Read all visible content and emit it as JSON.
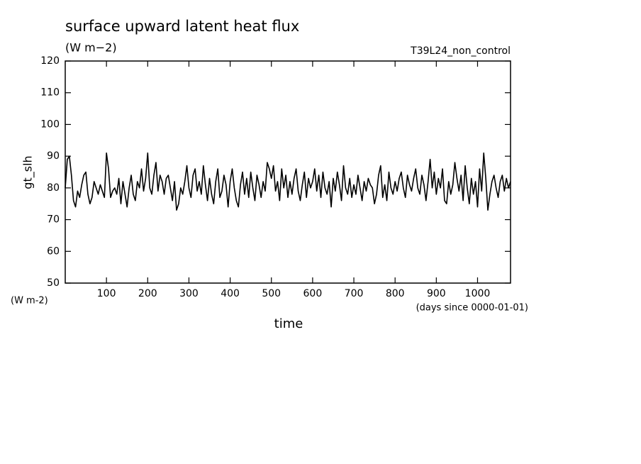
{
  "chart_data": {
    "type": "line",
    "title": "surface upward latent heat flux",
    "subtitle": "(W m−2)",
    "annotation": "T39L24_non_control",
    "ylabel": "gt_slh",
    "yunits": "(W m-2)",
    "xunits": "(days since 0000-01-01)",
    "xlabel": "time",
    "color": "#000000",
    "xlim": [
      0,
      1080
    ],
    "ylim": [
      50,
      120
    ],
    "xticks": [
      100,
      200,
      300,
      400,
      500,
      600,
      700,
      800,
      900,
      1000
    ],
    "yticks": [
      50,
      60,
      70,
      80,
      90,
      100,
      110,
      120
    ],
    "x": [
      0,
      5,
      10,
      15,
      20,
      25,
      30,
      35,
      40,
      45,
      50,
      55,
      60,
      65,
      70,
      75,
      80,
      85,
      90,
      95,
      100,
      105,
      110,
      115,
      120,
      125,
      130,
      135,
      140,
      145,
      150,
      155,
      160,
      165,
      170,
      175,
      180,
      185,
      190,
      195,
      200,
      205,
      210,
      215,
      220,
      225,
      230,
      235,
      240,
      245,
      250,
      255,
      260,
      265,
      270,
      275,
      280,
      285,
      290,
      295,
      300,
      305,
      310,
      315,
      320,
      325,
      330,
      335,
      340,
      345,
      350,
      355,
      360,
      365,
      370,
      375,
      380,
      385,
      390,
      395,
      400,
      405,
      410,
      415,
      420,
      425,
      430,
      435,
      440,
      445,
      450,
      455,
      460,
      465,
      470,
      475,
      480,
      485,
      490,
      495,
      500,
      505,
      510,
      515,
      520,
      525,
      530,
      535,
      540,
      545,
      550,
      555,
      560,
      565,
      570,
      575,
      580,
      585,
      590,
      595,
      600,
      605,
      610,
      615,
      620,
      625,
      630,
      635,
      640,
      645,
      650,
      655,
      660,
      665,
      670,
      675,
      680,
      685,
      690,
      695,
      700,
      705,
      710,
      715,
      720,
      725,
      730,
      735,
      740,
      745,
      750,
      755,
      760,
      765,
      770,
      775,
      780,
      785,
      790,
      795,
      800,
      805,
      810,
      815,
      820,
      825,
      830,
      835,
      840,
      845,
      850,
      855,
      860,
      865,
      870,
      875,
      880,
      885,
      890,
      895,
      900,
      905,
      910,
      915,
      920,
      925,
      930,
      935,
      940,
      945,
      950,
      955,
      960,
      965,
      970,
      975,
      980,
      985,
      990,
      995,
      1000,
      1005,
      1010,
      1015,
      1020,
      1025,
      1030,
      1035,
      1040,
      1045,
      1050,
      1055,
      1060,
      1065,
      1070,
      1075,
      1080
    ],
    "values": [
      80,
      89,
      90,
      84,
      76,
      74,
      79,
      77,
      81,
      84,
      85,
      78,
      75,
      77,
      82,
      80,
      78,
      81,
      79,
      77,
      91,
      86,
      77,
      79,
      80,
      78,
      83,
      75,
      82,
      78,
      74,
      80,
      84,
      78,
      76,
      82,
      80,
      86,
      79,
      83,
      91,
      80,
      78,
      84,
      88,
      79,
      84,
      82,
      78,
      83,
      84,
      80,
      76,
      82,
      73,
      75,
      80,
      78,
      82,
      87,
      80,
      77,
      84,
      86,
      79,
      82,
      78,
      87,
      81,
      76,
      83,
      78,
      75,
      82,
      86,
      77,
      79,
      84,
      81,
      74,
      82,
      86,
      80,
      76,
      74,
      81,
      85,
      78,
      83,
      77,
      85,
      80,
      76,
      84,
      81,
      77,
      82,
      79,
      88,
      86,
      83,
      87,
      79,
      82,
      76,
      86,
      80,
      84,
      77,
      82,
      78,
      83,
      86,
      79,
      76,
      81,
      85,
      77,
      83,
      80,
      82,
      86,
      79,
      84,
      77,
      85,
      80,
      78,
      82,
      74,
      83,
      79,
      85,
      81,
      76,
      87,
      80,
      78,
      83,
      77,
      81,
      78,
      84,
      80,
      76,
      82,
      79,
      83,
      81,
      80,
      75,
      78,
      84,
      87,
      77,
      81,
      76,
      85,
      80,
      78,
      82,
      79,
      83,
      85,
      80,
      77,
      84,
      81,
      79,
      83,
      86,
      80,
      78,
      84,
      81,
      76,
      82,
      89,
      80,
      85,
      78,
      83,
      80,
      86,
      76,
      75,
      82,
      78,
      81,
      88,
      83,
      79,
      84,
      76,
      87,
      80,
      75,
      83,
      78,
      82,
      74,
      86,
      79,
      91,
      83,
      73,
      78,
      82,
      84,
      80,
      77,
      82,
      84,
      79,
      83,
      80,
      82
    ]
  }
}
